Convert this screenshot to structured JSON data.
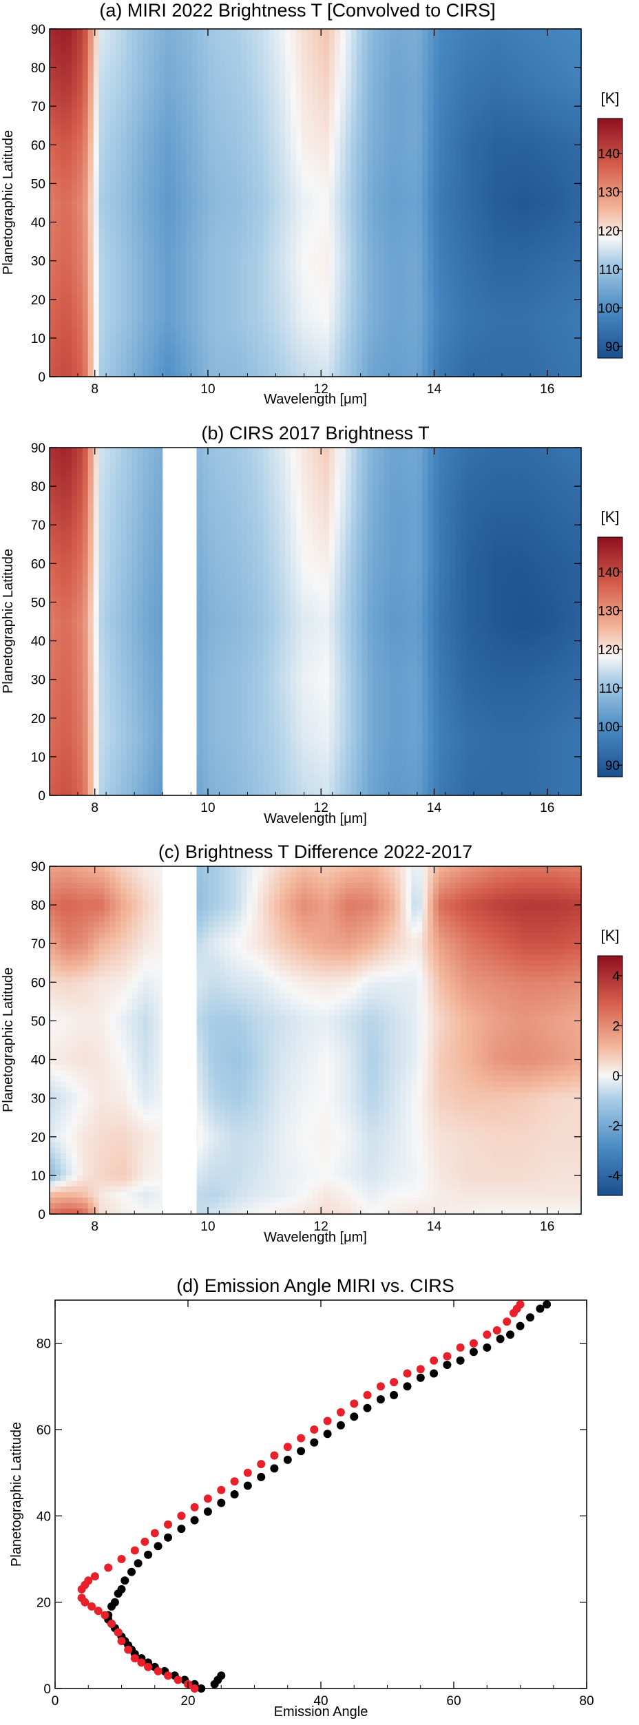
{
  "panels": {
    "a": {
      "title": "(a) MIRI 2022 Brightness T [Convolved to CIRS]",
      "xlabel": "Wavelength [μm]",
      "ylabel": "Planetographic Latitude",
      "xticks": [
        "8",
        "10",
        "12",
        "14",
        "16"
      ],
      "yticks": [
        "0",
        "10",
        "20",
        "30",
        "40",
        "50",
        "60",
        "70",
        "80",
        "90"
      ],
      "cbar_unit": "[K]",
      "cbar_ticks": [
        "90",
        "100",
        "110",
        "120",
        "130",
        "140"
      ]
    },
    "b": {
      "title": "(b) CIRS 2017 Brightness T",
      "xlabel": "Wavelength [μm]",
      "ylabel": "Planetographic Latitude",
      "xticks": [
        "8",
        "10",
        "12",
        "14",
        "16"
      ],
      "yticks": [
        "0",
        "10",
        "20",
        "30",
        "40",
        "50",
        "60",
        "70",
        "80",
        "90"
      ],
      "cbar_unit": "[K]",
      "cbar_ticks": [
        "90",
        "100",
        "110",
        "120",
        "130",
        "140"
      ]
    },
    "c": {
      "title": "(c) Brightness T Difference 2022-2017",
      "xlabel": "Wavelength [μm]",
      "ylabel": "Planetographic Latitude",
      "xticks": [
        "8",
        "10",
        "12",
        "14",
        "16"
      ],
      "yticks": [
        "0",
        "10",
        "20",
        "30",
        "40",
        "50",
        "60",
        "70",
        "80",
        "90"
      ],
      "cbar_unit": "[K]",
      "cbar_ticks": [
        "-4",
        "-2",
        "0",
        "2",
        "4"
      ]
    },
    "d": {
      "title": "(d) Emission Angle MIRI vs. CIRS",
      "xlabel": "Emission Angle",
      "ylabel": "Planetographic Latitude",
      "xticks": [
        "0",
        "20",
        "40",
        "60",
        "80"
      ],
      "yticks": [
        "0",
        "20",
        "40",
        "60",
        "80"
      ]
    }
  },
  "colors": {
    "blue_dark": "#1a4e8c",
    "white": "#f7f7f7",
    "red_dark": "#b2182b",
    "series_black": "#000000",
    "series_red": "#e8202a"
  },
  "chart_data": [
    {
      "type": "heatmap",
      "title": "(a) MIRI 2022 Brightness T [Convolved to CIRS]",
      "xlabel": "Wavelength [μm]",
      "ylabel": "Planetographic Latitude",
      "xlim": [
        7.2,
        16.6
      ],
      "ylim": [
        0,
        90
      ],
      "clim": [
        87,
        149
      ],
      "colorbar_label": "[K]",
      "colormap": "blue-white-red",
      "wavelength_um": [
        7.2,
        7.5,
        7.8,
        8.1,
        8.5,
        8.9,
        9.3,
        9.7,
        10.1,
        10.5,
        10.9,
        11.3,
        11.7,
        12.1,
        12.5,
        12.9,
        13.3,
        13.7,
        14.1,
        14.6,
        15.1,
        15.6,
        16.1,
        16.6
      ],
      "latitude_deg": [
        0,
        15,
        30,
        45,
        60,
        75,
        90
      ],
      "temperature_K": [
        [
          138,
          140,
          136,
          112,
          108,
          104,
          100,
          104,
          108,
          108,
          110,
          112,
          114,
          115,
          110,
          104,
          103,
          104,
          96,
          93,
          93,
          93,
          94,
          95
        ],
        [
          136,
          138,
          134,
          113,
          110,
          106,
          103,
          106,
          109,
          110,
          112,
          114,
          117,
          118,
          112,
          106,
          104,
          105,
          98,
          95,
          94,
          94,
          95,
          96
        ],
        [
          134,
          136,
          132,
          113,
          110,
          106,
          103,
          106,
          109,
          110,
          112,
          115,
          118,
          119,
          113,
          106,
          104,
          105,
          97,
          94,
          92,
          92,
          93,
          94
        ],
        [
          133,
          135,
          131,
          112,
          109,
          105,
          102,
          105,
          108,
          109,
          111,
          114,
          117,
          118,
          112,
          105,
          103,
          104,
          96,
          93,
          90,
          89,
          90,
          92
        ],
        [
          136,
          138,
          134,
          113,
          110,
          106,
          103,
          106,
          109,
          110,
          112,
          115,
          119,
          120,
          113,
          106,
          104,
          105,
          97,
          93,
          91,
          91,
          92,
          93
        ],
        [
          141,
          143,
          138,
          114,
          112,
          108,
          105,
          107,
          110,
          111,
          113,
          116,
          120,
          122,
          115,
          107,
          104,
          105,
          98,
          95,
          94,
          95,
          96,
          97
        ],
        [
          145,
          147,
          141,
          116,
          113,
          109,
          106,
          108,
          111,
          112,
          114,
          117,
          121,
          124,
          116,
          108,
          105,
          106,
          99,
          97,
          96,
          97,
          98,
          99
        ]
      ]
    },
    {
      "type": "heatmap",
      "title": "(b) CIRS 2017 Brightness T",
      "xlabel": "Wavelength [μm]",
      "ylabel": "Planetographic Latitude",
      "xlim": [
        7.2,
        16.6
      ],
      "ylim": [
        0,
        90
      ],
      "clim": [
        87,
        149
      ],
      "colorbar_label": "[K]",
      "colormap": "blue-white-red",
      "gap_um": [
        9.2,
        9.8
      ],
      "wavelength_um": [
        7.2,
        7.5,
        7.8,
        8.1,
        8.5,
        8.9,
        9.3,
        9.7,
        10.1,
        10.5,
        10.9,
        11.3,
        11.7,
        12.1,
        12.5,
        12.9,
        13.3,
        13.7,
        14.1,
        14.6,
        15.1,
        15.6,
        16.1,
        16.6
      ],
      "latitude_deg": [
        0,
        15,
        30,
        45,
        60,
        75,
        90
      ],
      "temperature_K": [
        [
          137,
          139,
          135,
          113,
          109,
          105,
          101,
          103,
          107,
          108,
          110,
          112,
          114,
          115,
          110,
          104,
          102,
          103,
          96,
          93,
          93,
          93,
          94,
          95
        ],
        [
          135,
          137,
          133,
          114,
          111,
          107,
          103,
          105,
          108,
          109,
          111,
          113,
          116,
          117,
          112,
          105,
          103,
          104,
          97,
          94,
          93,
          93,
          94,
          95
        ],
        [
          134,
          136,
          132,
          114,
          110,
          106,
          103,
          105,
          108,
          109,
          111,
          114,
          117,
          118,
          112,
          105,
          103,
          104,
          96,
          92,
          91,
          91,
          92,
          93
        ],
        [
          133,
          135,
          131,
          113,
          109,
          105,
          102,
          104,
          107,
          108,
          110,
          113,
          116,
          117,
          111,
          104,
          102,
          103,
          95,
          91,
          89,
          88,
          89,
          91
        ],
        [
          136,
          138,
          134,
          114,
          110,
          106,
          103,
          105,
          108,
          109,
          111,
          114,
          118,
          119,
          112,
          105,
          103,
          104,
          96,
          91,
          89,
          89,
          90,
          91
        ],
        [
          140,
          142,
          137,
          114,
          111,
          107,
          104,
          106,
          109,
          110,
          112,
          115,
          119,
          121,
          114,
          106,
          103,
          104,
          96,
          92,
          91,
          91,
          92,
          93
        ],
        [
          144,
          146,
          140,
          115,
          112,
          108,
          105,
          107,
          110,
          111,
          113,
          116,
          120,
          123,
          115,
          107,
          104,
          105,
          97,
          94,
          93,
          93,
          94,
          95
        ]
      ]
    },
    {
      "type": "heatmap",
      "title": "(c) Brightness T Difference 2022-2017",
      "xlabel": "Wavelength [μm]",
      "ylabel": "Planetographic Latitude",
      "xlim": [
        7.2,
        16.6
      ],
      "ylim": [
        0,
        90
      ],
      "clim": [
        -4.8,
        4.8
      ],
      "colorbar_label": "[K]",
      "colormap": "blue-white-red",
      "gap_um": [
        9.2,
        9.8
      ],
      "wavelength_um": [
        7.2,
        7.5,
        7.8,
        8.1,
        8.5,
        8.9,
        9.3,
        9.7,
        10.1,
        10.5,
        10.9,
        11.3,
        11.7,
        12.1,
        12.5,
        12.9,
        13.3,
        13.7,
        14.1,
        14.6,
        15.1,
        15.6,
        16.1,
        16.6
      ],
      "latitude_deg": [
        0,
        5,
        10,
        20,
        30,
        40,
        50,
        60,
        70,
        80,
        90
      ],
      "difference_K": [
        [
          2.5,
          3.0,
          2.8,
          0.5,
          0.2,
          0.0,
          0.0,
          -0.8,
          -0.4,
          -0.2,
          0.0,
          0.2,
          0.3,
          0.5,
          0.3,
          0.0,
          0.2,
          0.3,
          0.2,
          0.1,
          0.0,
          0.0,
          0.0,
          0.0
        ],
        [
          1.0,
          1.2,
          1.0,
          0.3,
          0.0,
          -0.3,
          0.0,
          -0.6,
          -0.8,
          -0.5,
          -0.3,
          -0.2,
          0.0,
          0.3,
          0.1,
          -0.2,
          0.0,
          0.0,
          0.2,
          0.3,
          0.3,
          0.3,
          0.3,
          0.3
        ],
        [
          -1.5,
          -0.5,
          0.3,
          0.6,
          0.8,
          0.2,
          0.0,
          -0.3,
          -0.6,
          -0.6,
          -0.4,
          -0.2,
          -0.1,
          0.0,
          -0.2,
          -0.4,
          -0.2,
          -0.1,
          0.3,
          0.5,
          0.5,
          0.5,
          0.4,
          0.4
        ],
        [
          -0.3,
          0.0,
          0.3,
          0.5,
          0.6,
          0.3,
          0.0,
          0.3,
          -0.3,
          -0.6,
          -0.5,
          -0.2,
          0.0,
          0.1,
          -0.1,
          -0.5,
          -0.3,
          0.0,
          0.4,
          0.5,
          0.6,
          0.6,
          0.5,
          0.5
        ],
        [
          -0.6,
          -0.3,
          0.0,
          0.3,
          0.2,
          -0.3,
          0.0,
          0.0,
          -0.8,
          -1.0,
          -0.7,
          -0.3,
          -0.1,
          0.0,
          -0.3,
          -0.8,
          -0.4,
          0.0,
          0.7,
          0.9,
          0.9,
          0.8,
          0.6,
          0.5
        ],
        [
          0.2,
          0.3,
          0.4,
          0.3,
          0.0,
          -0.5,
          0.0,
          -0.2,
          -1.0,
          -1.2,
          -0.8,
          -0.4,
          -0.2,
          0.0,
          -0.3,
          -0.9,
          -0.5,
          -0.2,
          0.8,
          1.2,
          1.8,
          2.0,
          1.8,
          1.5
        ],
        [
          0.0,
          0.1,
          0.2,
          0.2,
          -0.2,
          -0.6,
          0.0,
          -0.6,
          -1.0,
          -1.0,
          -0.7,
          -0.5,
          -0.3,
          -0.2,
          -0.5,
          -0.8,
          -0.5,
          -0.2,
          0.6,
          1.2,
          1.6,
          1.8,
          1.6,
          1.4
        ],
        [
          0.5,
          0.6,
          0.5,
          0.3,
          0.2,
          -0.2,
          0.0,
          -0.3,
          -0.6,
          -0.4,
          -0.3,
          0.0,
          0.2,
          0.3,
          0.2,
          -0.2,
          -0.2,
          -0.2,
          1.0,
          1.8,
          2.0,
          2.2,
          2.2,
          2.0
        ],
        [
          1.5,
          2.2,
          2.0,
          1.2,
          0.8,
          0.3,
          0.0,
          -0.8,
          -0.3,
          0.0,
          0.3,
          0.8,
          1.2,
          1.5,
          1.6,
          1.2,
          0.6,
          0.2,
          1.6,
          2.4,
          2.8,
          3.2,
          3.2,
          3.0
        ],
        [
          2.5,
          2.8,
          2.6,
          2.6,
          1.4,
          0.6,
          0.0,
          -1.6,
          -1.0,
          -0.6,
          0.3,
          1.2,
          2.0,
          1.6,
          2.4,
          2.2,
          1.2,
          -0.8,
          2.6,
          3.2,
          3.6,
          3.8,
          3.8,
          3.6
        ],
        [
          1.5,
          1.6,
          1.4,
          1.2,
          0.6,
          0.2,
          0.0,
          -1.4,
          -1.0,
          -0.6,
          0.0,
          0.6,
          1.0,
          0.8,
          1.0,
          1.2,
          0.6,
          -0.3,
          1.2,
          1.8,
          2.2,
          2.4,
          2.4,
          2.2
        ]
      ]
    },
    {
      "type": "scatter",
      "title": "(d) Emission Angle MIRI vs. CIRS",
      "xlabel": "Emission Angle",
      "ylabel": "Planetographic Latitude",
      "xlim": [
        0,
        80
      ],
      "ylim": [
        0,
        90
      ],
      "series": [
        {
          "color": "#000000",
          "x": [
            25,
            24.5,
            24,
            22,
            21,
            19.5,
            18,
            16.5,
            15,
            14,
            13,
            12,
            11.5,
            11,
            10.5,
            10,
            9.5,
            9,
            8.5,
            8,
            8,
            8.5,
            9,
            9.5,
            10,
            10.5,
            11.5,
            12.5,
            14,
            15.5,
            17,
            19,
            21,
            23,
            25,
            27,
            29,
            31,
            33,
            35,
            37,
            39,
            41,
            43,
            45,
            47,
            49,
            51,
            53,
            55,
            57,
            59,
            61,
            63,
            65,
            67,
            68.5,
            70,
            71.5,
            73,
            74
          ],
          "y": [
            3,
            2,
            1,
            0,
            1,
            2,
            3,
            4,
            5,
            6,
            7,
            8,
            9,
            10,
            11,
            12,
            13,
            14,
            15,
            16,
            17,
            19,
            20,
            22,
            23,
            25,
            27,
            29,
            31,
            33,
            35,
            37,
            39,
            41,
            43,
            45,
            47,
            49,
            51,
            53,
            55,
            57,
            59,
            61,
            63,
            65,
            67,
            68,
            70,
            72,
            73,
            75,
            76,
            78,
            79,
            81,
            82,
            84,
            86,
            88,
            89
          ]
        },
        {
          "color": "#e8202a",
          "x": [
            21,
            20,
            18.5,
            17,
            15.5,
            14,
            13,
            12,
            11,
            10,
            9.5,
            8.5,
            7.5,
            6.5,
            5.5,
            4.5,
            4,
            4,
            4.5,
            5,
            6,
            8,
            10,
            12,
            13.5,
            15,
            17,
            19,
            21,
            23,
            25,
            27,
            29,
            31,
            33,
            35,
            37,
            39,
            41,
            43,
            45,
            47,
            49,
            51,
            53,
            55,
            57,
            59,
            61,
            63,
            65,
            66.5,
            68,
            69,
            69.5,
            70
          ],
          "y": [
            0,
            1,
            2,
            3,
            4,
            5,
            6,
            7,
            9,
            11,
            13,
            15,
            17,
            18,
            19,
            20,
            21,
            23,
            24,
            25,
            26,
            28,
            30,
            32,
            34,
            36,
            38,
            40,
            42,
            44,
            46,
            48,
            50,
            52,
            54,
            56,
            58,
            60,
            62,
            64,
            66,
            68,
            70,
            71,
            73,
            74,
            76,
            77,
            79,
            80,
            82,
            83,
            85,
            87,
            88,
            89
          ]
        }
      ]
    }
  ]
}
